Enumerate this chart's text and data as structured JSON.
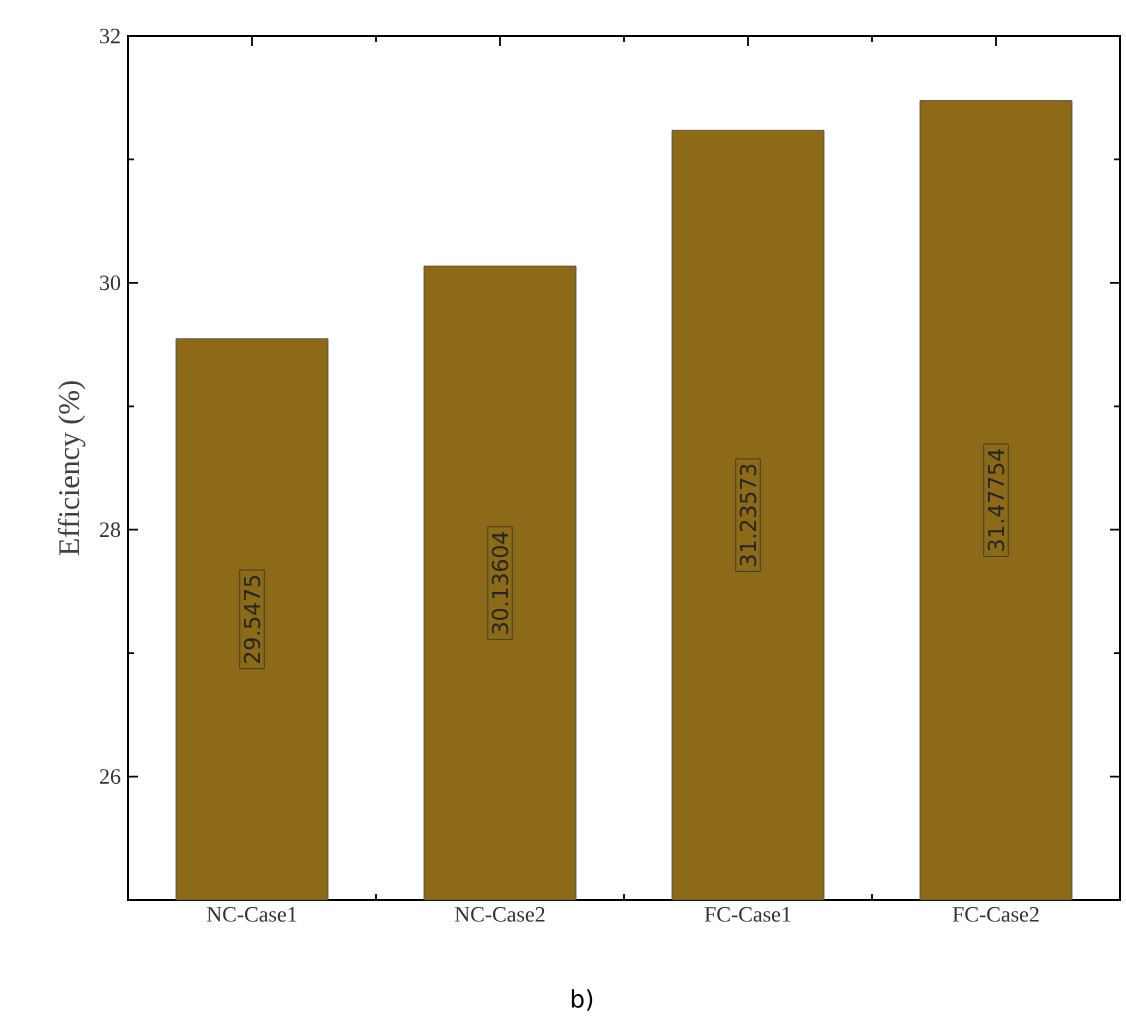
{
  "chart_data": {
    "type": "bar",
    "ylabel": "Efficiency (%)",
    "categories": [
      "NC-Case1",
      "NC-Case2",
      "FC-Case1",
      "FC-Case2"
    ],
    "values": [
      29.5475,
      30.13604,
      31.23573,
      31.47754
    ],
    "color": "#8c6a18",
    "ylim": [
      25,
      32
    ],
    "yticks": [
      26,
      28,
      30,
      32
    ],
    "data_labels": true,
    "grid": false,
    "annotations": [
      "b)"
    ]
  }
}
